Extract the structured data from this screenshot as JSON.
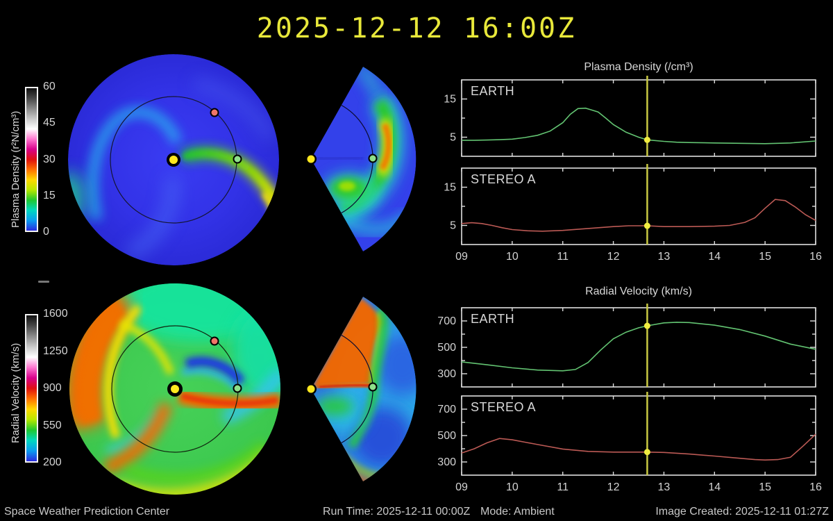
{
  "title": "2025-12-12 16:00Z",
  "colors": {
    "background": "#000000",
    "title": "#e8e83a",
    "text": "#c8c8c8",
    "axis": "#e0e0e0",
    "timeline": "#c9c943",
    "marker": "#f0ec40",
    "earth_series": "#63c472",
    "stereo_series": "#bc5a55",
    "sun_dot": "#ffe81e",
    "earth_dot": "#8ee08a",
    "stereo_dot": "#ef7668"
  },
  "colormap": {
    "stops": [
      "#2a2ae0",
      "#0a9cf0",
      "#00d8c0",
      "#20c830",
      "#b8e800",
      "#ffd800",
      "#ff7000",
      "#e01010",
      "#d8008c",
      "#ff78d0",
      "#ffffff",
      "#c8c8c8",
      "#8a8a8a",
      "#484848",
      "#101010"
    ]
  },
  "colorbars": [
    {
      "label": "Plasma Density (r²N/cm³)",
      "ticks": [
        "60",
        "45",
        "30",
        "15",
        "0"
      ]
    },
    {
      "label": "Radial Velocity (km/s)",
      "ticks": [
        "1600",
        "1250",
        "900",
        "550",
        "200"
      ]
    }
  ],
  "chart_data": [
    {
      "type": "line",
      "title": "Plasma Density (/cm³)",
      "label": "EARTH",
      "color": "#63c472",
      "xlim": [
        9,
        16
      ],
      "ylim": [
        0,
        20
      ],
      "xticks": [
        9,
        10,
        11,
        12,
        13,
        14,
        15,
        16
      ],
      "xtick_labels": [
        "09",
        "10",
        "11",
        "12",
        "13",
        "14",
        "15",
        "16"
      ],
      "show_xlabels": false,
      "yticks": [
        {
          "v": 5,
          "label": "5"
        },
        {
          "v": 10,
          "label": ""
        },
        {
          "v": 15,
          "label": "15"
        }
      ],
      "x": [
        9,
        9.25,
        9.5,
        9.75,
        10,
        10.25,
        10.5,
        10.75,
        11,
        11.15,
        11.3,
        11.45,
        11.55,
        11.7,
        11.85,
        12,
        12.25,
        12.5,
        12.67,
        13,
        13.25,
        13.5,
        14,
        14.5,
        15,
        15.5,
        16
      ],
      "y": [
        4.2,
        4.2,
        4.25,
        4.35,
        4.5,
        4.9,
        5.5,
        6.6,
        8.8,
        11.0,
        12.5,
        12.6,
        12.2,
        11.6,
        10.0,
        8.3,
        6.3,
        5.0,
        4.3,
        3.9,
        3.7,
        3.6,
        3.5,
        3.4,
        3.3,
        3.5,
        4.0
      ],
      "marker": {
        "x": 12.67,
        "y": 4.3
      }
    },
    {
      "type": "line",
      "title": "",
      "label": "STEREO A",
      "color": "#bc5a55",
      "xlim": [
        9,
        16
      ],
      "ylim": [
        0,
        20
      ],
      "xticks": [
        9,
        10,
        11,
        12,
        13,
        14,
        15,
        16
      ],
      "xtick_labels": [
        "09",
        "10",
        "11",
        "12",
        "13",
        "14",
        "15",
        "16"
      ],
      "show_xlabels": true,
      "yticks": [
        {
          "v": 5,
          "label": "5"
        },
        {
          "v": 10,
          "label": ""
        },
        {
          "v": 15,
          "label": "15"
        }
      ],
      "x": [
        9,
        9.2,
        9.4,
        9.6,
        9.8,
        10,
        10.3,
        10.6,
        11,
        11.5,
        12,
        12.3,
        12.67,
        13,
        13.5,
        14,
        14.3,
        14.6,
        14.8,
        15,
        15.2,
        15.4,
        15.6,
        15.8,
        16
      ],
      "y": [
        5.5,
        5.7,
        5.5,
        5.0,
        4.4,
        3.9,
        3.6,
        3.5,
        3.7,
        4.2,
        4.7,
        4.9,
        4.9,
        4.7,
        4.7,
        4.8,
        5.0,
        5.8,
        7.0,
        9.5,
        11.8,
        11.5,
        9.8,
        7.8,
        6.3
      ],
      "marker": {
        "x": 12.67,
        "y": 4.9
      }
    },
    {
      "type": "line",
      "title": "Radial Velocity (km/s)",
      "label": "EARTH",
      "color": "#63c472",
      "xlim": [
        9,
        16
      ],
      "ylim": [
        200,
        800
      ],
      "xticks": [
        9,
        10,
        11,
        12,
        13,
        14,
        15,
        16
      ],
      "xtick_labels": [
        "09",
        "10",
        "11",
        "12",
        "13",
        "14",
        "15",
        "16"
      ],
      "show_xlabels": false,
      "yticks": [
        {
          "v": 300,
          "label": "300"
        },
        {
          "v": 400,
          "label": ""
        },
        {
          "v": 500,
          "label": "500"
        },
        {
          "v": 600,
          "label": ""
        },
        {
          "v": 700,
          "label": "700"
        }
      ],
      "x": [
        9,
        9.5,
        10,
        10.5,
        11,
        11.25,
        11.5,
        11.75,
        12,
        12.25,
        12.5,
        12.67,
        13,
        13.25,
        13.5,
        14,
        14.5,
        15,
        15.5,
        16
      ],
      "y": [
        390,
        368,
        345,
        328,
        322,
        332,
        385,
        480,
        565,
        615,
        648,
        663,
        685,
        690,
        688,
        668,
        635,
        585,
        525,
        485
      ],
      "marker": {
        "x": 12.67,
        "y": 663
      }
    },
    {
      "type": "line",
      "title": "",
      "label": "STEREO A",
      "color": "#bc5a55",
      "xlim": [
        9,
        16
      ],
      "ylim": [
        200,
        800
      ],
      "xticks": [
        9,
        10,
        11,
        12,
        13,
        14,
        15,
        16
      ],
      "xtick_labels": [
        "09",
        "10",
        "11",
        "12",
        "13",
        "14",
        "15",
        "16"
      ],
      "show_xlabels": true,
      "yticks": [
        {
          "v": 300,
          "label": "300"
        },
        {
          "v": 400,
          "label": ""
        },
        {
          "v": 500,
          "label": "500"
        },
        {
          "v": 600,
          "label": ""
        },
        {
          "v": 700,
          "label": "700"
        }
      ],
      "x": [
        9,
        9.25,
        9.5,
        9.75,
        10,
        10.25,
        10.5,
        11,
        11.5,
        12,
        12.67,
        13,
        13.5,
        14,
        14.5,
        14.8,
        15,
        15.25,
        15.5,
        15.75,
        16
      ],
      "y": [
        368,
        400,
        445,
        478,
        468,
        450,
        432,
        398,
        380,
        375,
        375,
        372,
        360,
        345,
        328,
        318,
        315,
        318,
        335,
        420,
        510
      ],
      "marker": {
        "x": 12.67,
        "y": 375
      }
    }
  ],
  "footer": {
    "left": "Space Weather Prediction Center",
    "run_time": "Run Time: 2025-12-11 00:00Z",
    "mode": "Mode: Ambient",
    "right": "Image Created: 2025-12-11 01:27Z"
  }
}
